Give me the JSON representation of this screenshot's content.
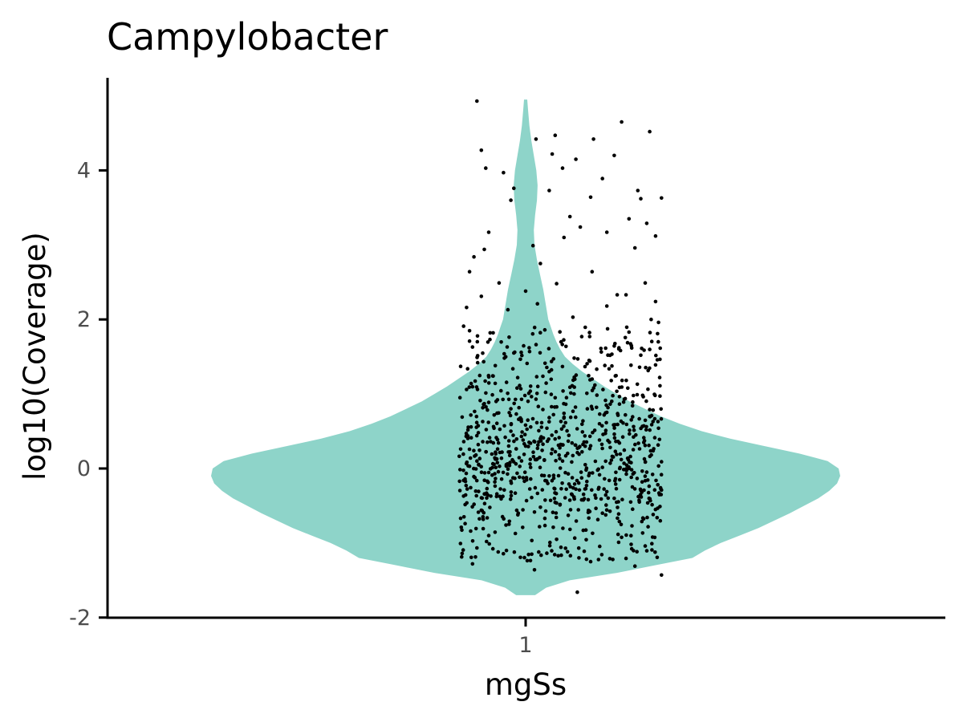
{
  "chart_data": {
    "type": "violin",
    "title": "Campylobacter",
    "xlabel": "mgSs",
    "ylabel": "log10(Coverage)",
    "categories": [
      "1"
    ],
    "ylim": [
      -2,
      5.2
    ],
    "yticks": [
      -2,
      0,
      2,
      4
    ],
    "grid": false,
    "legend": "none",
    "colors": {
      "violin": "#8ed4c9",
      "points": "#000000"
    },
    "violin": {
      "y_min": -1.7,
      "y_max": 4.95,
      "density": [
        [
          -1.7,
          0.03
        ],
        [
          -1.6,
          0.065
        ],
        [
          -1.5,
          0.14
        ],
        [
          -1.4,
          0.29
        ],
        [
          -1.3,
          0.41
        ],
        [
          -1.2,
          0.53
        ],
        [
          -1.1,
          0.57
        ],
        [
          -1.0,
          0.62
        ],
        [
          -0.9,
          0.68
        ],
        [
          -0.8,
          0.74
        ],
        [
          -0.7,
          0.79
        ],
        [
          -0.6,
          0.84
        ],
        [
          -0.5,
          0.885
        ],
        [
          -0.4,
          0.93
        ],
        [
          -0.3,
          0.965
        ],
        [
          -0.2,
          0.99
        ],
        [
          -0.1,
          1.0
        ],
        [
          0.0,
          0.995
        ],
        [
          0.1,
          0.96
        ],
        [
          0.2,
          0.87
        ],
        [
          0.3,
          0.76
        ],
        [
          0.4,
          0.65
        ],
        [
          0.5,
          0.56
        ],
        [
          0.6,
          0.49
        ],
        [
          0.7,
          0.43
        ],
        [
          0.8,
          0.38
        ],
        [
          0.9,
          0.33
        ],
        [
          1.0,
          0.29
        ],
        [
          1.1,
          0.25
        ],
        [
          1.2,
          0.215
        ],
        [
          1.3,
          0.18
        ],
        [
          1.4,
          0.15
        ],
        [
          1.5,
          0.125
        ],
        [
          1.6,
          0.11
        ],
        [
          1.7,
          0.098
        ],
        [
          1.8,
          0.088
        ],
        [
          1.9,
          0.08
        ],
        [
          2.0,
          0.072
        ],
        [
          2.2,
          0.064
        ],
        [
          2.4,
          0.056
        ],
        [
          2.6,
          0.046
        ],
        [
          2.8,
          0.036
        ],
        [
          3.0,
          0.028
        ],
        [
          3.2,
          0.026
        ],
        [
          3.4,
          0.03
        ],
        [
          3.6,
          0.036
        ],
        [
          3.8,
          0.038
        ],
        [
          4.0,
          0.034
        ],
        [
          4.2,
          0.026
        ],
        [
          4.4,
          0.018
        ],
        [
          4.6,
          0.012
        ],
        [
          4.8,
          0.008
        ],
        [
          4.95,
          0.005
        ]
      ]
    },
    "jitter_points": [
      [
        -0.33,
        4.93
      ],
      [
        0.2,
        4.47
      ],
      [
        0.65,
        4.65
      ],
      [
        0.84,
        4.52
      ],
      [
        -0.3,
        4.27
      ],
      [
        0.07,
        4.42
      ],
      [
        0.46,
        4.42
      ],
      [
        0.6,
        4.2
      ],
      [
        -0.27,
        4.03
      ],
      [
        0.18,
        4.22
      ],
      [
        0.25,
        4.03
      ],
      [
        -0.15,
        3.97
      ],
      [
        -0.08,
        3.76
      ],
      [
        0.34,
        4.15
      ],
      [
        0.52,
        3.89
      ],
      [
        0.44,
        3.64
      ],
      [
        0.76,
        3.73
      ],
      [
        0.78,
        3.62
      ],
      [
        0.92,
        3.63
      ],
      [
        0.82,
        3.29
      ],
      [
        0.88,
        3.12
      ],
      [
        -0.1,
        3.6
      ],
      [
        0.16,
        3.73
      ],
      [
        0.3,
        3.38
      ],
      [
        -0.25,
        3.17
      ],
      [
        -0.35,
        2.84
      ],
      [
        -0.28,
        2.94
      ],
      [
        0.05,
        2.99
      ],
      [
        0.26,
        3.1
      ],
      [
        0.37,
        3.24
      ],
      [
        0.55,
        3.17
      ],
      [
        0.7,
        3.35
      ],
      [
        0.74,
        2.96
      ],
      [
        -0.38,
        2.64
      ],
      [
        -0.18,
        2.49
      ],
      [
        0.0,
        2.38
      ],
      [
        0.1,
        2.75
      ],
      [
        0.21,
        2.48
      ],
      [
        0.45,
        2.64
      ],
      [
        0.62,
        2.33
      ],
      [
        0.81,
        2.49
      ],
      [
        0.88,
        2.24
      ],
      [
        -0.4,
        2.16
      ],
      [
        -0.3,
        2.31
      ],
      [
        -0.12,
        2.13
      ],
      [
        0.08,
        2.21
      ],
      [
        0.32,
        2.03
      ],
      [
        0.55,
        2.18
      ],
      [
        0.68,
        2.33
      ],
      [
        0.85,
        2.0
      ],
      [
        -0.42,
        1.91
      ],
      [
        -0.24,
        1.82
      ],
      [
        0.13,
        1.86
      ],
      [
        0.38,
        1.77
      ],
      [
        0.7,
        1.83
      ],
      [
        0.9,
        1.96
      ],
      [
        -0.36,
        1.63
      ],
      [
        -0.08,
        1.55
      ],
      [
        0.24,
        1.7
      ],
      [
        0.51,
        1.61
      ],
      [
        0.78,
        1.52
      ],
      [
        -0.44,
        1.37
      ],
      [
        0.01,
        1.41
      ],
      [
        0.43,
        1.45
      ],
      [
        0.88,
        1.39
      ],
      [
        -0.22,
        1.24
      ],
      [
        0.16,
        1.3
      ],
      [
        0.58,
        1.18
      ],
      [
        0.91,
        1.11
      ],
      [
        -0.4,
        1.06
      ],
      [
        0.3,
        1.09
      ],
      [
        0.73,
        0.98
      ],
      [
        -0.28,
        0.87
      ],
      [
        0.07,
        0.93
      ],
      [
        0.48,
        0.82
      ],
      [
        0.84,
        0.79
      ],
      [
        -0.43,
        0.69
      ],
      [
        -0.03,
        0.66
      ],
      [
        0.26,
        0.74
      ],
      [
        0.66,
        0.61
      ],
      [
        0.9,
        0.54
      ],
      [
        -0.32,
        0.48
      ],
      [
        0.12,
        0.41
      ],
      [
        0.54,
        0.47
      ],
      [
        0.8,
        0.35
      ],
      [
        -0.44,
        0.26
      ],
      [
        -0.16,
        0.22
      ],
      [
        0.36,
        0.28
      ],
      [
        0.71,
        0.16
      ],
      [
        0.92,
        0.09
      ],
      [
        -0.38,
        0.03
      ],
      [
        0.03,
        0.06
      ],
      [
        0.41,
        -0.02
      ],
      [
        0.86,
        -0.08
      ],
      [
        -0.26,
        -0.17
      ],
      [
        0.19,
        -0.13
      ],
      [
        0.61,
        -0.21
      ],
      [
        0.92,
        -0.29
      ],
      [
        -0.42,
        -0.37
      ],
      [
        -0.07,
        -0.33
      ],
      [
        0.33,
        -0.41
      ],
      [
        0.77,
        -0.45
      ],
      [
        -0.3,
        -0.56
      ],
      [
        0.1,
        -0.52
      ],
      [
        0.52,
        -0.6
      ],
      [
        0.89,
        -0.66
      ],
      [
        -0.41,
        -0.74
      ],
      [
        -0.02,
        -0.79
      ],
      [
        0.39,
        -0.83
      ],
      [
        0.72,
        -0.77
      ],
      [
        -0.25,
        -0.9
      ],
      [
        0.21,
        -0.95
      ],
      [
        0.63,
        -0.99
      ],
      [
        0.86,
        -0.92
      ],
      [
        -0.43,
        -1.14
      ],
      [
        -0.13,
        -1.1
      ],
      [
        0.27,
        -1.07
      ],
      [
        0.57,
        -1.21
      ],
      [
        0.81,
        -1.04
      ],
      [
        -0.36,
        -1.28
      ],
      [
        0.06,
        -1.36
      ],
      [
        0.44,
        -1.25
      ],
      [
        0.74,
        -1.31
      ],
      [
        0.92,
        -1.43
      ],
      [
        0.35,
        -1.66
      ],
      [
        -0.2,
        0.9
      ],
      [
        0.0,
        0.3
      ],
      [
        0.15,
        -0.2
      ],
      [
        -0.1,
        0.5
      ],
      [
        0.25,
        0.1
      ],
      [
        -0.05,
        -0.6
      ],
      [
        0.5,
        0.6
      ],
      [
        0.6,
        -0.4
      ],
      [
        -0.33,
        0.1
      ],
      [
        0.45,
        1.2
      ]
    ],
    "density_scatter": {
      "x_range": [
        -0.45,
        0.92
      ],
      "y_mean": 0.25,
      "y_sd": 0.75,
      "y_min": -1.25,
      "y_max": 1.9,
      "count": 820,
      "seed": 20240517
    }
  }
}
